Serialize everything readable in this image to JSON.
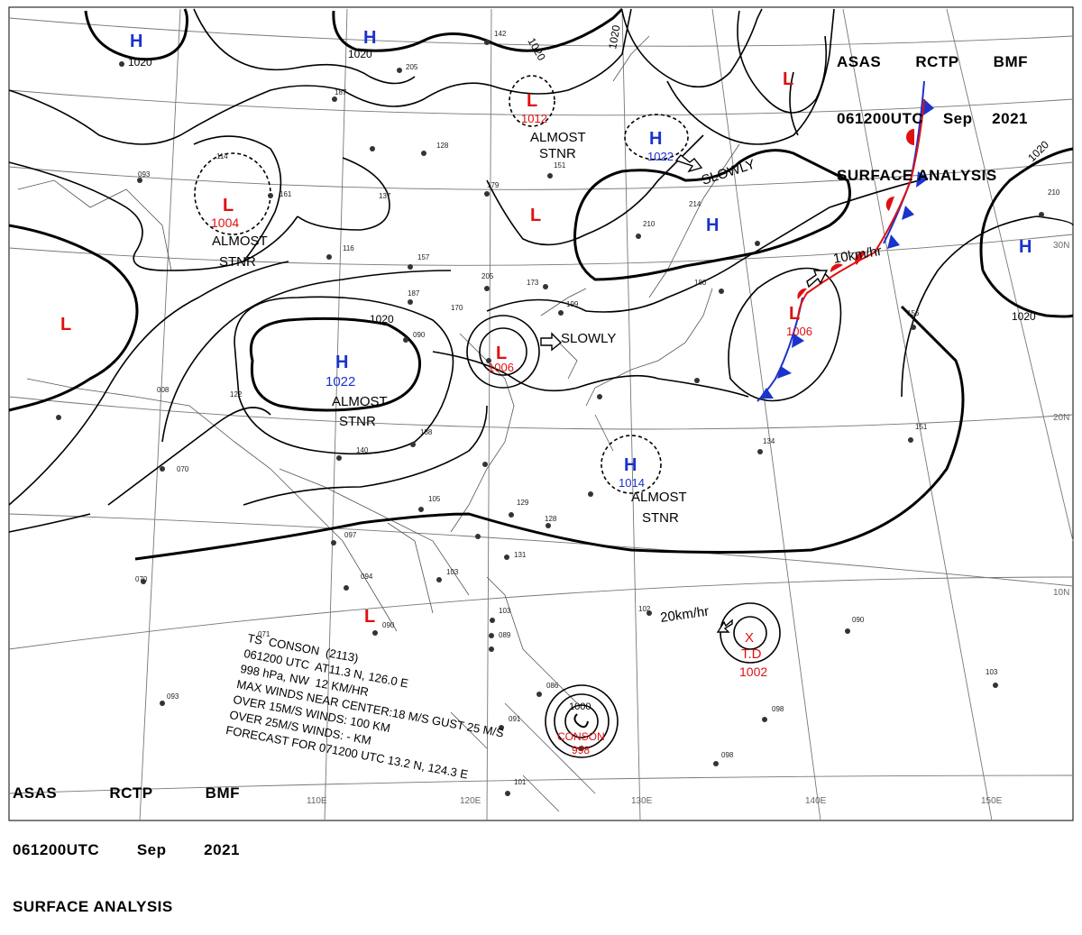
{
  "header": {
    "agency": "ASAS",
    "station": "RCTP",
    "service": "BMF",
    "datetime": "061200UTC",
    "month": "Sep",
    "year": "2021",
    "product": "SURFACE ANALYSIS"
  },
  "pressure_centers": [
    {
      "type": "H",
      "value": "1020"
    },
    {
      "type": "H",
      "value": "1020"
    },
    {
      "type": "L",
      "value": "1012"
    },
    {
      "type": "H",
      "value": "1022"
    },
    {
      "type": "L",
      "value": ""
    },
    {
      "type": "L",
      "value": "1004"
    },
    {
      "type": "L",
      "value": ""
    },
    {
      "type": "H",
      "value": ""
    },
    {
      "type": "H",
      "value": "1022"
    },
    {
      "type": "L",
      "value": "1006"
    },
    {
      "type": "L",
      "value": "1006"
    },
    {
      "type": "H",
      "value": "1014"
    },
    {
      "type": "L",
      "value": ""
    },
    {
      "type": "H",
      "value": ""
    },
    {
      "type": "L",
      "value": ""
    }
  ],
  "tropical_systems": [
    {
      "symbol": "X",
      "label": "T.D",
      "pressure": "1002"
    },
    {
      "label": "CONSON",
      "pressure": "998",
      "inner_isobar": "1000"
    }
  ],
  "isobar_labels": [
    "1020",
    "1020",
    "1020",
    "1020",
    "1020",
    "1020",
    "1020"
  ],
  "motion_annotations": [
    {
      "text": "SLOWLY"
    },
    {
      "text": "SLOWLY"
    },
    {
      "text": "10km/hr"
    },
    {
      "text": "20km/hr"
    }
  ],
  "stationary_labels": [
    {
      "line1": "ALMOST",
      "line2": "STNR"
    },
    {
      "line1": "ALMOST",
      "line2": "STNR"
    },
    {
      "line1": "ALMOST",
      "line2": "STNR"
    },
    {
      "line1": "ALMOST",
      "line2": "STNR"
    }
  ],
  "storm_info": {
    "lines": [
      "TS  CONSON  (2113)",
      "061200 UTC  AT11.3 N, 126.0 E",
      "998 hPa, NW  12 KM/HR",
      "MAX WINDS NEAR CENTER:18 M/S GUST 25 M/S",
      "OVER 15M/S WINDS: 100 KM",
      "OVER 25M/S WINDS: - KM",
      "FORECAST FOR 071200 UTC 13.2 N, 124.3 E"
    ]
  },
  "graticule": {
    "longitudes": [
      "110E",
      "120E",
      "130E",
      "140E",
      "150E"
    ],
    "latitudes": [
      "30N",
      "20N",
      "10N"
    ]
  },
  "colors": {
    "high_pressure": "#1a33cc",
    "low_pressure": "#e01010",
    "isobar": "#000000",
    "coastline": "#555555",
    "graticule": "#777777",
    "cold_front": "#1a33cc",
    "warm_front": "#e01010"
  },
  "station_plots": [
    "142",
    "205",
    "187",
    "137",
    "128",
    "179",
    "151",
    "161",
    "116",
    "157",
    "205",
    "173",
    "187",
    "170",
    "199",
    "090",
    "188",
    "122",
    "140",
    "105",
    "129",
    "128",
    "131",
    "097",
    "094",
    "103",
    "090",
    "071",
    "093",
    "103",
    "089",
    "086",
    "091",
    "101",
    "098",
    "098",
    "102",
    "090",
    "103",
    "134",
    "151",
    "156",
    "210",
    "214",
    "210",
    "180",
    "093",
    "070",
    "070",
    "008",
    "114"
  ]
}
